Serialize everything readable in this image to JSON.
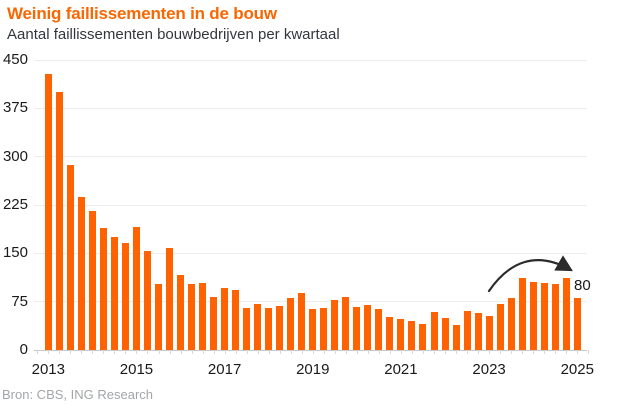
{
  "header": {
    "title": "Weinig faillissementen in de bouw",
    "subtitle": "Aantal faillissementen bouwbedrijven per kwartaal"
  },
  "footer": {
    "source": "Bron: CBS, ING Research"
  },
  "colors": {
    "accent_title": "#f96702",
    "bar": "#ff6200",
    "axis_text": "#1a1a1a",
    "grid": "#ededed",
    "baseline": "#c9c9c9",
    "arrow": "#2b2b2b",
    "source_text": "#a3a6a8"
  },
  "chart_data": {
    "type": "bar",
    "title": "Weinig faillissementen in de bouw",
    "subtitle": "Aantal faillissementen bouwbedrijven per kwartaal",
    "xlabel": "",
    "ylabel": "",
    "ylim": [
      0,
      450
    ],
    "yticks": [
      0,
      75,
      150,
      225,
      300,
      375,
      450
    ],
    "grid": "horizontal",
    "legend": "none",
    "x": [
      "2013 Q1",
      "2013 Q2",
      "2013 Q3",
      "2013 Q4",
      "2014 Q1",
      "2014 Q2",
      "2014 Q3",
      "2014 Q4",
      "2015 Q1",
      "2015 Q2",
      "2015 Q3",
      "2015 Q4",
      "2016 Q1",
      "2016 Q2",
      "2016 Q3",
      "2016 Q4",
      "2017 Q1",
      "2017 Q2",
      "2017 Q3",
      "2017 Q4",
      "2018 Q1",
      "2018 Q2",
      "2018 Q3",
      "2018 Q4",
      "2019 Q1",
      "2019 Q2",
      "2019 Q3",
      "2019 Q4",
      "2020 Q1",
      "2020 Q2",
      "2020 Q3",
      "2020 Q4",
      "2021 Q1",
      "2021 Q2",
      "2021 Q3",
      "2021 Q4",
      "2022 Q1",
      "2022 Q2",
      "2022 Q3",
      "2022 Q4",
      "2023 Q1",
      "2023 Q2",
      "2023 Q3",
      "2023 Q4",
      "2024 Q1",
      "2024 Q2",
      "2024 Q3",
      "2024 Q4",
      "2025 Q1"
    ],
    "values": [
      428,
      400,
      287,
      238,
      215,
      190,
      176,
      166,
      191,
      153,
      102,
      159,
      117,
      103,
      104,
      83,
      97,
      93,
      65,
      71,
      65,
      68,
      80,
      88,
      63,
      65,
      78,
      82,
      67,
      70,
      64,
      51,
      48,
      45,
      41,
      59,
      49,
      39,
      61,
      57,
      53,
      72,
      80,
      111,
      105,
      104,
      103,
      111,
      80
    ],
    "xtick_labels": [
      "2013",
      "2015",
      "2017",
      "2019",
      "2021",
      "2023",
      "2025"
    ],
    "xtick_every_n_bars": 8,
    "annotation": {
      "text": "80",
      "points_to": "2025 Q1",
      "shape": "curved-arrow"
    }
  }
}
